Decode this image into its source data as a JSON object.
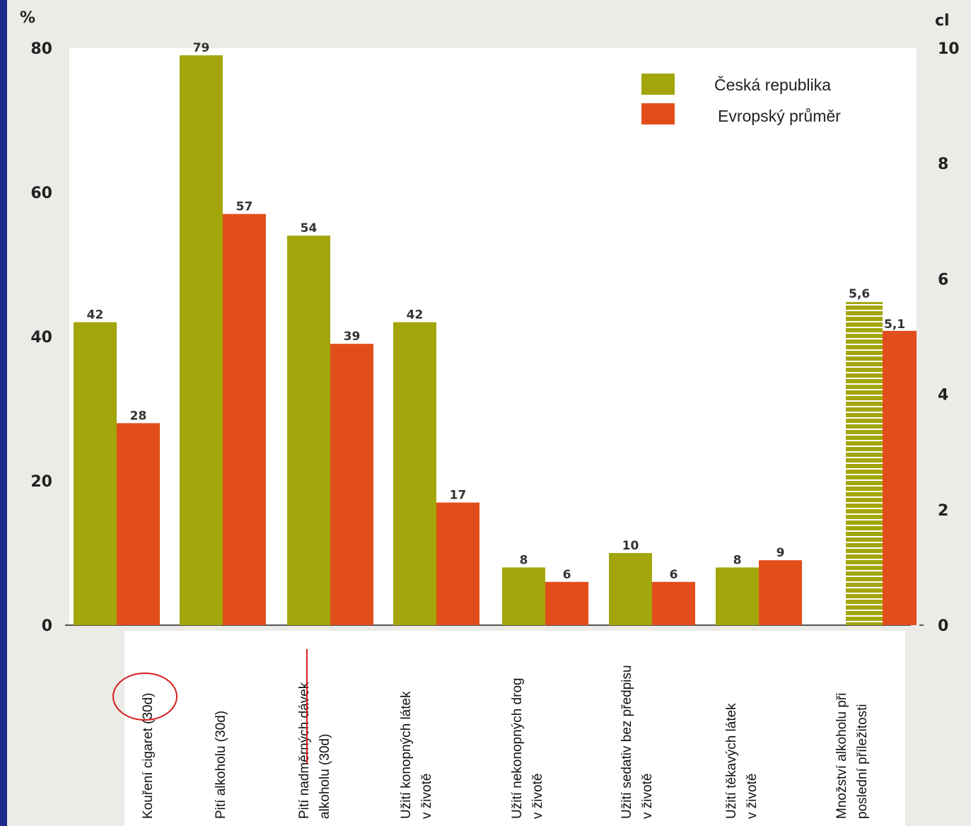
{
  "chart_data": {
    "type": "bar",
    "left_axis_unit": "%",
    "right_axis_unit": "cl",
    "left_ylim": [
      0,
      80
    ],
    "left_ticks": [
      "0",
      "20",
      "40",
      "60",
      "80"
    ],
    "right_ylim": [
      0,
      10
    ],
    "right_ticks": [
      "0",
      "2",
      "4",
      "6",
      "8",
      "10"
    ],
    "categories": [
      [
        "Kouření cigaret (30d)"
      ],
      [
        "Pití alkoholu (30d)"
      ],
      [
        "Pití nadměrných dávek",
        "alkoholu (30d)"
      ],
      [
        "Užití konopných látek",
        "v životě"
      ],
      [
        "Užití nekonopných drog",
        "v životě"
      ],
      [
        "Užití sedativ bez předpisu",
        "v životě"
      ],
      [
        "Užití těkavých látek",
        "v životě"
      ]
    ],
    "series": [
      {
        "name": "Česká republika",
        "color": "#a3a60a",
        "values": [
          42,
          79,
          54,
          42,
          8,
          10,
          8
        ],
        "labels": [
          "42",
          "79",
          "54",
          "42",
          "8",
          "10",
          "8"
        ]
      },
      {
        "name": "Evropský průměr",
        "color": "#e24e1b",
        "values": [
          28,
          57,
          39,
          17,
          6,
          6,
          9
        ],
        "labels": [
          "28",
          "57",
          "39",
          "17",
          "6",
          "6",
          "9"
        ]
      }
    ],
    "secondary": {
      "axis": "right",
      "category": [
        "Množství alkoholu při",
        "poslední příležitosti"
      ],
      "values": [
        5.6,
        5.1
      ],
      "labels": [
        "5,6",
        "5,1"
      ]
    },
    "legend": {
      "position": "top-right",
      "items": [
        "Česká republika",
        "Evropský průměr"
      ]
    },
    "grid": false
  }
}
